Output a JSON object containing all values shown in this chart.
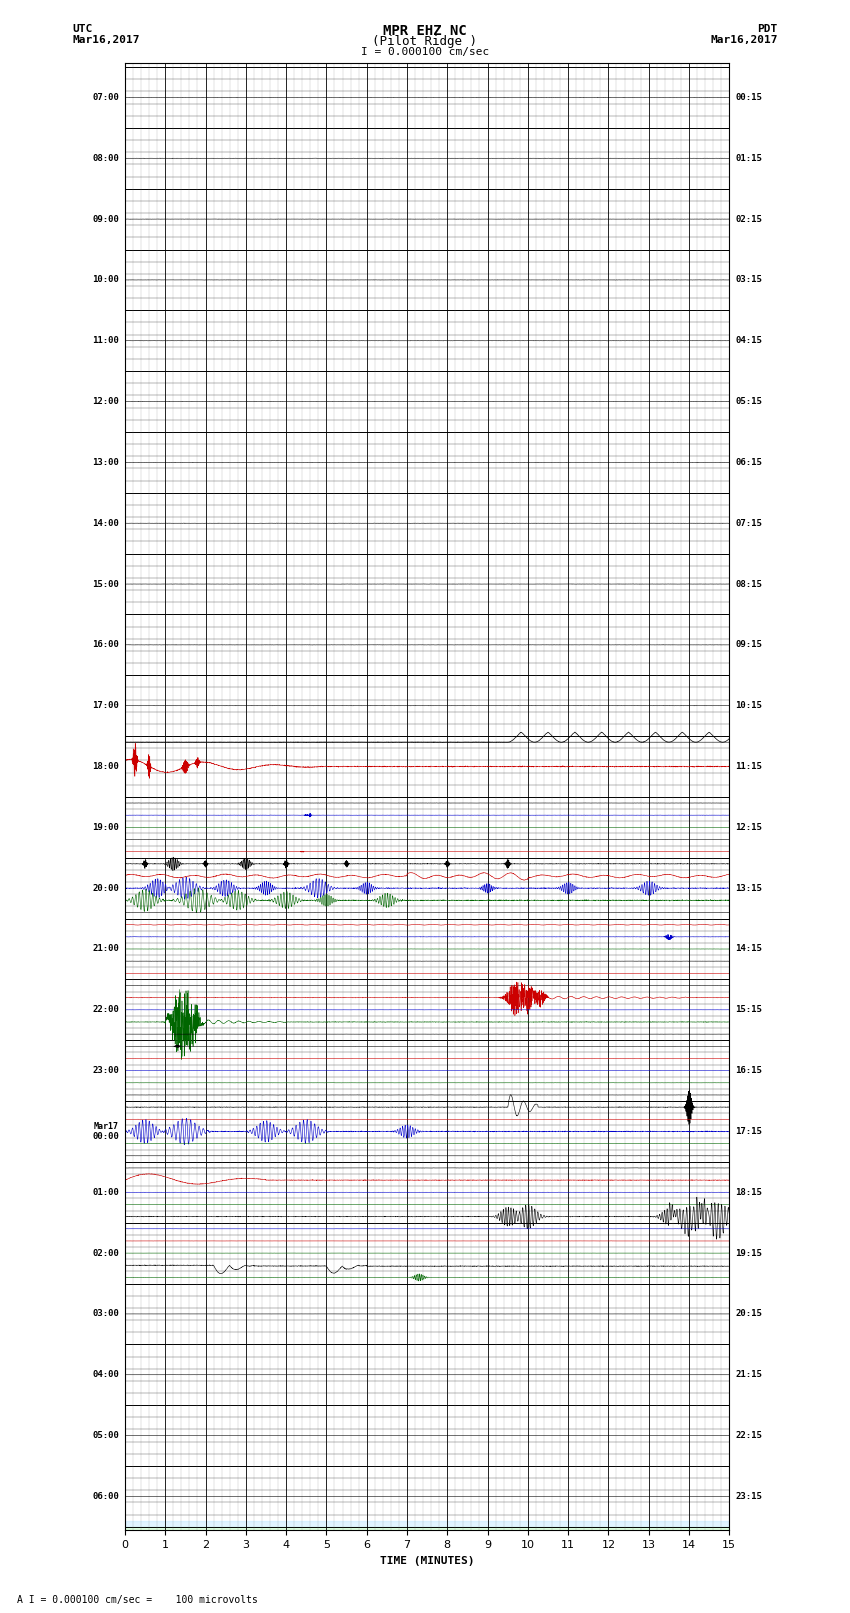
{
  "title_line1": "MPR EHZ NC",
  "title_line2": "(Pilot Ridge )",
  "title_scale": "I = 0.000100 cm/sec",
  "bottom_label": "TIME (MINUTES)",
  "bottom_note": "A I = 0.000100 cm/sec =    100 microvolts",
  "utc_labels": [
    "07:00",
    "08:00",
    "09:00",
    "10:00",
    "11:00",
    "12:00",
    "13:00",
    "14:00",
    "15:00",
    "16:00",
    "17:00",
    "18:00",
    "19:00",
    "20:00",
    "21:00",
    "22:00",
    "23:00",
    "Mar17\n00:00",
    "01:00",
    "02:00",
    "03:00",
    "04:00",
    "05:00",
    "06:00"
  ],
  "pdt_labels": [
    "00:15",
    "01:15",
    "02:15",
    "03:15",
    "04:15",
    "05:15",
    "06:15",
    "07:15",
    "08:15",
    "09:15",
    "10:15",
    "11:15",
    "12:15",
    "13:15",
    "14:15",
    "15:15",
    "16:15",
    "17:15",
    "18:15",
    "19:15",
    "20:15",
    "21:15",
    "22:15",
    "23:15"
  ],
  "n_rows": 24,
  "sub_rows_per_row": 5,
  "x_min": 0,
  "x_max": 15,
  "bg_color": "#ffffff",
  "figsize": [
    8.5,
    16.13
  ],
  "dpi": 100
}
